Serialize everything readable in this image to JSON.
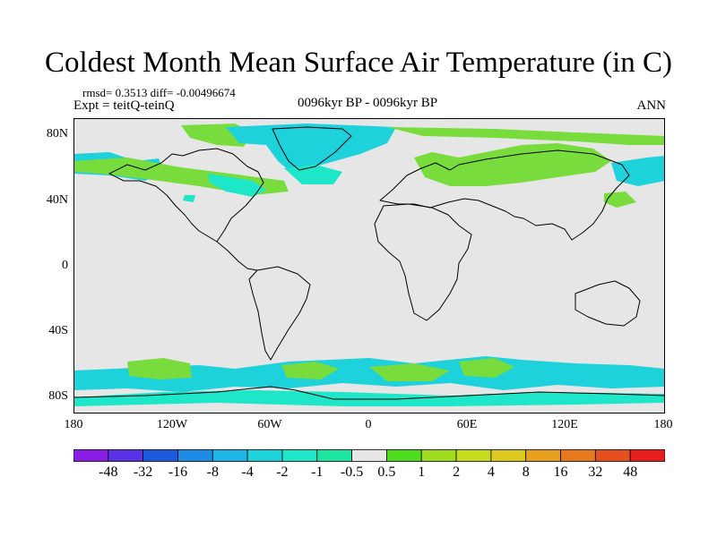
{
  "title": "Coldest Month Mean Surface Air Temperature (in C)",
  "stats": "rmsd= 0.3513 diff= -0.00496674",
  "experiment": "Expt = teitQ-teinQ",
  "period": "0096kyr BP - 0096kyr BP",
  "season": "ANN",
  "lat_ticks": [
    "80N",
    "40N",
    "0",
    "40S",
    "80S"
  ],
  "lon_ticks": [
    "180",
    "120W",
    "60W",
    "0",
    "60E",
    "120E",
    "180"
  ],
  "colorbar": {
    "labels": [
      "-48",
      "-32",
      "-16",
      "-8",
      "-4",
      "-2",
      "-1",
      "-0.5",
      "0.5",
      "1",
      "2",
      "4",
      "8",
      "16",
      "32",
      "48"
    ],
    "colors": [
      "#8a1ee6",
      "#5a32e6",
      "#1e5adc",
      "#1e8ce6",
      "#1eb4e6",
      "#1ed2dc",
      "#1ee6c8",
      "#1ee6a0",
      "#e6e6e6",
      "#50dc1e",
      "#a0dc1e",
      "#c8dc1e",
      "#dcc81e",
      "#e6a01e",
      "#e6781e",
      "#e6501e",
      "#e61e1e"
    ]
  },
  "map_colors": {
    "background": "#e6e6e6",
    "cool": "#1ed2dc",
    "teal": "#1ee6c8",
    "warm": "#78dc3c",
    "coast": "#000000"
  }
}
